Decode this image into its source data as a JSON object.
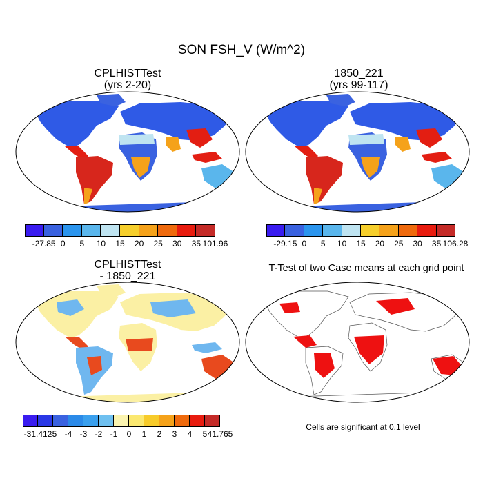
{
  "figure": {
    "title": "SON FSH_V (W/m^2)",
    "panels": {
      "top_left": {
        "title_line1": "CPLHISTTest",
        "title_line2": "(yrs 2-20)"
      },
      "top_right": {
        "title_line1": "1850_221",
        "title_line2": "(yrs 99-117)"
      },
      "bottom_left": {
        "title_line1": "CPLHISTTest",
        "title_line2": "- 1850_221"
      },
      "bottom_right": {
        "title": "T-Test of two Case means at each grid point",
        "note": "Cells are significant at 0.1 level"
      }
    },
    "colorbars": {
      "top_left": {
        "labels": [
          "-27.85",
          "0",
          "5",
          "10",
          "15",
          "20",
          "25",
          "30",
          "35",
          "101.96"
        ],
        "colors": [
          "#3a1cf0",
          "#3a62e0",
          "#2b95ee",
          "#5ab6ec",
          "#bfe4f1",
          "#f6cf2c",
          "#f5a21a",
          "#ef6a0d",
          "#e81c0f",
          "#c42a27"
        ]
      },
      "top_right": {
        "labels": [
          "-29.15",
          "0",
          "5",
          "10",
          "15",
          "20",
          "25",
          "30",
          "35",
          "106.28"
        ],
        "colors": [
          "#3a1cf0",
          "#3a62e0",
          "#2b95ee",
          "#5ab6ec",
          "#bfe4f1",
          "#f6cf2c",
          "#f5a21a",
          "#ef6a0d",
          "#e81c0f",
          "#c42a27"
        ]
      },
      "bottom_left": {
        "labels": [
          "-31.412",
          "-5",
          "-4",
          "-3",
          "-2",
          "-1",
          "0",
          "1",
          "2",
          "3",
          "4",
          "5",
          "41.765"
        ],
        "colors": [
          "#3a1cf0",
          "#2a38e6",
          "#3a62e0",
          "#2b8ae8",
          "#3aa0ee",
          "#6fc0f0",
          "#fbf4b0",
          "#fbe870",
          "#f7cb2a",
          "#f5a21a",
          "#ef6a0d",
          "#e81c0f",
          "#c42a27"
        ]
      }
    },
    "map_colors": {
      "tl_base": "#2f5ae6",
      "tl_hot": "#e31e12",
      "tl_warm": "#f5a21a",
      "diff_base": "#fbf0a4",
      "diff_blue": "#6fb7ef",
      "diff_hot": "#e84a1e",
      "ttest_sig": "#ee1111"
    }
  }
}
